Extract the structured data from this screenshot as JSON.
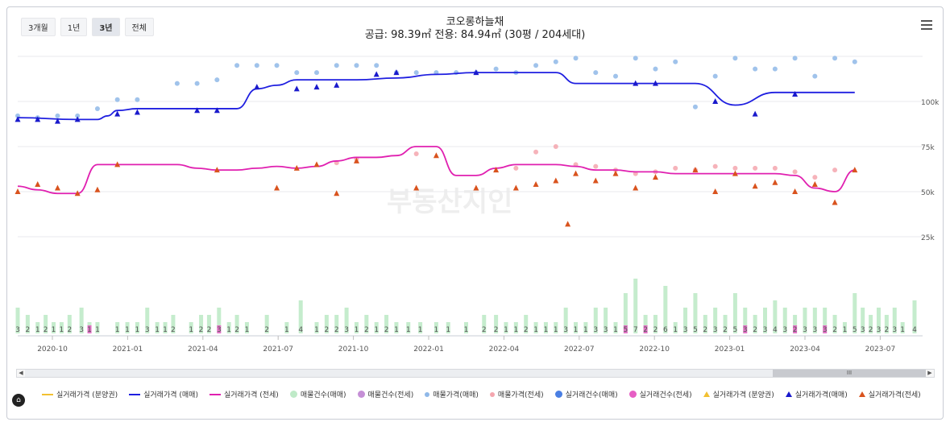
{
  "periods": [
    {
      "label": "3개월"
    },
    {
      "label": "1년"
    },
    {
      "label": "3년",
      "active": true
    },
    {
      "label": "전체"
    }
  ],
  "title_line1": "코오롱하늘채",
  "title_line2": "공급: 98.39㎡ 전용: 84.94㎡ (30평 / 204세대)",
  "watermark": "부동산지인",
  "logo_text": "⌂",
  "chart_data": {
    "type": "line",
    "x_ticks": [
      "2020-10",
      "2021-01",
      "2021-04",
      "2021-07",
      "2021-10",
      "2022-01",
      "2022-04",
      "2022-07",
      "2022-10",
      "2023-01",
      "2023-04",
      "2023-07"
    ],
    "y_ticks": [
      "100k",
      "75k",
      "50k",
      "25k"
    ],
    "y_tick_values": [
      100000,
      75000,
      50000,
      25000
    ],
    "ylim": [
      0,
      125000
    ],
    "legend_position": "bottom",
    "grid": true,
    "colors": {
      "sale": "#1f1fe0",
      "jeonse": "#e020b0",
      "sale_dot": "#8fb8e8",
      "jeonse_dot": "#f4a6ae",
      "tri_sale": "#1a1acc",
      "tri_jeonse": "#d9531e",
      "vol_sale": "#bfeac8",
      "vol_jeonse": "#e7a0d9",
      "deal_sale": "#5b8fe0",
      "deal_jeonse": "#e65ec4"
    },
    "series": [
      {
        "name": "실거래가격 (매매)",
        "key": "sale_line",
        "x": [
          0,
          3,
          4,
          4.5,
          5,
          6,
          6.5,
          7,
          8,
          11,
          12,
          13,
          14,
          15,
          16,
          17,
          19,
          21,
          23,
          24,
          25,
          26,
          27,
          28,
          30,
          32,
          33,
          34,
          36,
          38,
          39,
          40,
          42
        ],
        "values": [
          91000,
          90000,
          90000,
          92000,
          95000,
          96000,
          96000,
          96000,
          96000,
          96000,
          107000,
          109000,
          112000,
          112000,
          112000,
          112000,
          113000,
          115000,
          116000,
          116000,
          116000,
          116000,
          116000,
          110000,
          110000,
          110000,
          110000,
          110000,
          98000,
          105000,
          105000,
          105000,
          105000
        ]
      },
      {
        "name": "실거래가격 (전세)",
        "key": "jeonse_line",
        "x": [
          0,
          1,
          2,
          3,
          4,
          5,
          6,
          7,
          8,
          9,
          10,
          11,
          12,
          13,
          14,
          15,
          16,
          17,
          18,
          19,
          20,
          21,
          22,
          23,
          24,
          25,
          26,
          27,
          28,
          29,
          30,
          31,
          32,
          33,
          34,
          35,
          36,
          37,
          38,
          39,
          40,
          41,
          42
        ],
        "values": [
          53000,
          51000,
          49000,
          49000,
          65000,
          65000,
          65000,
          65000,
          65000,
          63000,
          62000,
          62000,
          63000,
          64000,
          63000,
          64000,
          67000,
          69000,
          69000,
          70000,
          75000,
          75000,
          59000,
          59000,
          63000,
          65000,
          65000,
          65000,
          64000,
          62000,
          62000,
          61000,
          61000,
          60000,
          60000,
          60000,
          60000,
          60000,
          60000,
          59000,
          52000,
          50000,
          62000
        ]
      }
    ],
    "sale_listings": [
      [
        0,
        92000
      ],
      [
        1,
        91000
      ],
      [
        2,
        92000
      ],
      [
        3,
        92000
      ],
      [
        4,
        96000
      ],
      [
        5,
        101000
      ],
      [
        6,
        101000
      ],
      [
        8,
        110000
      ],
      [
        9,
        110000
      ],
      [
        10,
        112000
      ],
      [
        11,
        120000
      ],
      [
        12,
        120000
      ],
      [
        13,
        120000
      ],
      [
        14,
        116000
      ],
      [
        15,
        116000
      ],
      [
        16,
        120000
      ],
      [
        17,
        120000
      ],
      [
        18,
        120000
      ],
      [
        19,
        116000
      ],
      [
        20,
        116000
      ],
      [
        21,
        116000
      ],
      [
        22,
        116000
      ],
      [
        23,
        116000
      ],
      [
        24,
        118000
      ],
      [
        25,
        116000
      ],
      [
        26,
        120000
      ],
      [
        27,
        122000
      ],
      [
        28,
        124000
      ],
      [
        29,
        116000
      ],
      [
        30,
        114000
      ],
      [
        31,
        124000
      ],
      [
        32,
        118000
      ],
      [
        33,
        122000
      ],
      [
        34,
        97000
      ],
      [
        35,
        114000
      ],
      [
        36,
        124000
      ],
      [
        37,
        118000
      ],
      [
        38,
        118000
      ],
      [
        39,
        124000
      ],
      [
        40,
        114000
      ],
      [
        41,
        124000
      ],
      [
        42,
        122000
      ]
    ],
    "jeonse_listings": [
      [
        16,
        66000
      ],
      [
        17,
        68000
      ],
      [
        20,
        71000
      ],
      [
        25,
        63000
      ],
      [
        26,
        72000
      ],
      [
        27,
        75000
      ],
      [
        28,
        65000
      ],
      [
        29,
        64000
      ],
      [
        30,
        62000
      ],
      [
        31,
        60000
      ],
      [
        32,
        61000
      ],
      [
        33,
        63000
      ],
      [
        34,
        62000
      ],
      [
        35,
        64000
      ],
      [
        36,
        63000
      ],
      [
        37,
        63000
      ],
      [
        38,
        63000
      ],
      [
        39,
        61000
      ],
      [
        40,
        58000
      ],
      [
        41,
        62000
      ]
    ],
    "sale_trades": [
      [
        0,
        90000
      ],
      [
        1,
        90000
      ],
      [
        2,
        89000
      ],
      [
        3,
        90000
      ],
      [
        5,
        93000
      ],
      [
        6,
        94000
      ],
      [
        9,
        95000
      ],
      [
        10,
        95000
      ],
      [
        12,
        108000
      ],
      [
        14,
        107000
      ],
      [
        15,
        108000
      ],
      [
        16,
        109000
      ],
      [
        18,
        115000
      ],
      [
        19,
        116000
      ],
      [
        23,
        116000
      ],
      [
        31,
        110000
      ],
      [
        32,
        110000
      ],
      [
        35,
        100000
      ],
      [
        37,
        93000
      ],
      [
        39,
        104000
      ]
    ],
    "jeonse_trades": [
      [
        0,
        50000
      ],
      [
        1,
        54000
      ],
      [
        2,
        52000
      ],
      [
        3,
        49000
      ],
      [
        4,
        51000
      ],
      [
        5,
        65000
      ],
      [
        10,
        62000
      ],
      [
        13,
        52000
      ],
      [
        14,
        63000
      ],
      [
        15,
        65000
      ],
      [
        16,
        49000
      ],
      [
        17,
        67000
      ],
      [
        20,
        52000
      ],
      [
        21,
        70000
      ],
      [
        23,
        52000
      ],
      [
        24,
        62000
      ],
      [
        25,
        52000
      ],
      [
        26,
        54000
      ],
      [
        27,
        56000
      ],
      [
        28,
        60000
      ],
      [
        29,
        56000
      ],
      [
        30,
        60000
      ],
      [
        31,
        52000
      ],
      [
        32,
        58000
      ],
      [
        34,
        62000
      ],
      [
        35,
        50000
      ],
      [
        36,
        60000
      ],
      [
        37,
        53000
      ],
      [
        38,
        55000
      ],
      [
        39,
        50000
      ],
      [
        40,
        54000
      ],
      [
        41,
        44000
      ],
      [
        42,
        62000
      ]
    ],
    "volumes": [
      {
        "x": 0,
        "label": "3",
        "sale": 3,
        "jeonse": 0
      },
      {
        "x": 0.5,
        "label": "2",
        "sale": 2,
        "jeonse": 0
      },
      {
        "x": 1,
        "label": "1",
        "sale": 1,
        "jeonse": 0
      },
      {
        "x": 1.4,
        "label": "2",
        "sale": 2,
        "jeonse": 0
      },
      {
        "x": 1.8,
        "label": "1",
        "sale": 1,
        "jeonse": 0
      },
      {
        "x": 2.2,
        "label": "1",
        "sale": 1,
        "jeonse": 0
      },
      {
        "x": 2.6,
        "label": "2",
        "sale": 2,
        "jeonse": 0
      },
      {
        "x": 3.2,
        "label": "3",
        "sale": 3,
        "jeonse": 0
      },
      {
        "x": 3.6,
        "label": "1",
        "sale": 1,
        "jeonse": 1
      },
      {
        "x": 4,
        "label": "1",
        "sale": 1,
        "jeonse": 0
      },
      {
        "x": 5,
        "label": "1",
        "sale": 1,
        "jeonse": 0
      },
      {
        "x": 5.5,
        "label": "1",
        "sale": 1,
        "jeonse": 0
      },
      {
        "x": 6,
        "label": "1",
        "sale": 1,
        "jeonse": 0
      },
      {
        "x": 6.5,
        "label": "3",
        "sale": 3,
        "jeonse": 0
      },
      {
        "x": 7,
        "label": "1",
        "sale": 1,
        "jeonse": 0
      },
      {
        "x": 7.4,
        "label": "1",
        "sale": 1,
        "jeonse": 0
      },
      {
        "x": 7.8,
        "label": "2",
        "sale": 2,
        "jeonse": 0
      },
      {
        "x": 8.7,
        "label": "1",
        "sale": 1,
        "jeonse": 0
      },
      {
        "x": 9.2,
        "label": "2",
        "sale": 2,
        "jeonse": 0
      },
      {
        "x": 9.6,
        "label": "2",
        "sale": 2,
        "jeonse": 0
      },
      {
        "x": 10.1,
        "label": "3",
        "sale": 3,
        "jeonse": 1
      },
      {
        "x": 10.6,
        "label": "1",
        "sale": 1,
        "jeonse": 0
      },
      {
        "x": 11,
        "label": "2",
        "sale": 2,
        "jeonse": 0
      },
      {
        "x": 11.5,
        "label": "1",
        "sale": 1,
        "jeonse": 0
      },
      {
        "x": 12.5,
        "label": "2",
        "sale": 2,
        "jeonse": 0
      },
      {
        "x": 13.5,
        "label": "1",
        "sale": 1,
        "jeonse": 0
      },
      {
        "x": 14.2,
        "label": "4",
        "sale": 4,
        "jeonse": 0
      },
      {
        "x": 15,
        "label": "1",
        "sale": 1,
        "jeonse": 0
      },
      {
        "x": 15.5,
        "label": "2",
        "sale": 2,
        "jeonse": 0
      },
      {
        "x": 16,
        "label": "2",
        "sale": 2,
        "jeonse": 0
      },
      {
        "x": 16.5,
        "label": "3",
        "sale": 3,
        "jeonse": 0
      },
      {
        "x": 17,
        "label": "1",
        "sale": 1,
        "jeonse": 0
      },
      {
        "x": 17.5,
        "label": "2",
        "sale": 2,
        "jeonse": 0
      },
      {
        "x": 18,
        "label": "1",
        "sale": 1,
        "jeonse": 0
      },
      {
        "x": 18.5,
        "label": "2",
        "sale": 2,
        "jeonse": 0
      },
      {
        "x": 19,
        "label": "1",
        "sale": 1,
        "jeonse": 0
      },
      {
        "x": 19.6,
        "label": "1",
        "sale": 1,
        "jeonse": 0
      },
      {
        "x": 20.2,
        "label": "1",
        "sale": 1,
        "jeonse": 0
      },
      {
        "x": 21,
        "label": "1",
        "sale": 1,
        "jeonse": 0
      },
      {
        "x": 21.6,
        "label": "1",
        "sale": 1,
        "jeonse": 0
      },
      {
        "x": 22.5,
        "label": "1",
        "sale": 1,
        "jeonse": 0
      },
      {
        "x": 23.4,
        "label": "2",
        "sale": 2,
        "jeonse": 0
      },
      {
        "x": 24,
        "label": "2",
        "sale": 2,
        "jeonse": 0
      },
      {
        "x": 24.5,
        "label": "1",
        "sale": 1,
        "jeonse": 0
      },
      {
        "x": 25,
        "label": "1",
        "sale": 1,
        "jeonse": 0
      },
      {
        "x": 25.5,
        "label": "2",
        "sale": 2,
        "jeonse": 0
      },
      {
        "x": 26,
        "label": "1",
        "sale": 1,
        "jeonse": 0
      },
      {
        "x": 26.5,
        "label": "1",
        "sale": 1,
        "jeonse": 0
      },
      {
        "x": 27,
        "label": "1",
        "sale": 1,
        "jeonse": 0
      },
      {
        "x": 27.5,
        "label": "3",
        "sale": 3,
        "jeonse": 0
      },
      {
        "x": 28,
        "label": "1",
        "sale": 1,
        "jeonse": 0
      },
      {
        "x": 28.5,
        "label": "1",
        "sale": 1,
        "jeonse": 0
      },
      {
        "x": 29,
        "label": "3",
        "sale": 3,
        "jeonse": 0
      },
      {
        "x": 29.5,
        "label": "3",
        "sale": 3,
        "jeonse": 0
      },
      {
        "x": 30,
        "label": "1",
        "sale": 1,
        "jeonse": 0
      },
      {
        "x": 30.5,
        "label": "5",
        "sale": 5,
        "jeonse": 1
      },
      {
        "x": 31,
        "label": "7",
        "sale": 7,
        "jeonse": 0
      },
      {
        "x": 31.5,
        "label": "2",
        "sale": 2,
        "jeonse": 1
      },
      {
        "x": 32,
        "label": "2",
        "sale": 2,
        "jeonse": 0
      },
      {
        "x": 32.5,
        "label": "6",
        "sale": 6,
        "jeonse": 0
      },
      {
        "x": 33,
        "label": "1",
        "sale": 1,
        "jeonse": 0
      },
      {
        "x": 33.5,
        "label": "3",
        "sale": 3,
        "jeonse": 0
      },
      {
        "x": 34,
        "label": "5",
        "sale": 5,
        "jeonse": 0
      },
      {
        "x": 34.5,
        "label": "2",
        "sale": 2,
        "jeonse": 0
      },
      {
        "x": 35,
        "label": "3",
        "sale": 3,
        "jeonse": 0
      },
      {
        "x": 35.5,
        "label": "2",
        "sale": 2,
        "jeonse": 0
      },
      {
        "x": 36,
        "label": "5",
        "sale": 5,
        "jeonse": 0
      },
      {
        "x": 36.5,
        "label": "3",
        "sale": 3,
        "jeonse": 1
      },
      {
        "x": 37,
        "label": "2",
        "sale": 2,
        "jeonse": 0
      },
      {
        "x": 37.5,
        "label": "3",
        "sale": 3,
        "jeonse": 0
      },
      {
        "x": 38,
        "label": "4",
        "sale": 4,
        "jeonse": 0
      },
      {
        "x": 38.5,
        "label": "3",
        "sale": 3,
        "jeonse": 0
      },
      {
        "x": 39,
        "label": "2",
        "sale": 2,
        "jeonse": 1
      },
      {
        "x": 39.5,
        "label": "3",
        "sale": 3,
        "jeonse": 0
      },
      {
        "x": 40,
        "label": "3",
        "sale": 3,
        "jeonse": 0
      },
      {
        "x": 40.5,
        "label": "3",
        "sale": 3,
        "jeonse": 1
      },
      {
        "x": 41,
        "label": "2",
        "sale": 2,
        "jeonse": 0
      },
      {
        "x": 41.5,
        "label": "1",
        "sale": 1,
        "jeonse": 0
      },
      {
        "x": 42,
        "label": "5",
        "sale": 5,
        "jeonse": 0
      },
      {
        "x": 42.4,
        "label": "3",
        "sale": 3,
        "jeonse": 0
      },
      {
        "x": 42.8,
        "label": "2",
        "sale": 2,
        "jeonse": 0
      },
      {
        "x": 43.2,
        "label": "3",
        "sale": 3,
        "jeonse": 0
      },
      {
        "x": 43.6,
        "label": "2",
        "sale": 2,
        "jeonse": 0
      },
      {
        "x": 44,
        "label": "3",
        "sale": 3,
        "jeonse": 0
      },
      {
        "x": 44.4,
        "label": "1",
        "sale": 1,
        "jeonse": 0
      },
      {
        "x": 45,
        "label": "4",
        "sale": 4,
        "jeonse": 0
      }
    ],
    "outlier_jeonse": {
      "x": 27.6,
      "y": 32000
    }
  },
  "legend": [
    {
      "label": "실거래가격 (분양권)",
      "shape": "line",
      "color": "#f2c031"
    },
    {
      "label": "실거래가격 (매매)",
      "shape": "line",
      "color": "#1f1fe0"
    },
    {
      "label": "실거래가격 (전세)",
      "shape": "line",
      "color": "#e020b0"
    },
    {
      "label": "매물건수(매매)",
      "shape": "dot",
      "color": "#bfeac8"
    },
    {
      "label": "매물건수(전세)",
      "shape": "dot",
      "color": "#c58fd6"
    },
    {
      "label": "매물가격(매매)",
      "shape": "smalldot",
      "color": "#8fb8e8"
    },
    {
      "label": "매물가격(전세)",
      "shape": "smalldot",
      "color": "#f4a6ae"
    },
    {
      "label": "실거래건수(매매)",
      "shape": "dot",
      "color": "#4a7fe3"
    },
    {
      "label": "실거래건수(전세)",
      "shape": "dot",
      "color": "#e65ec4"
    },
    {
      "label": "실거래가격 (분양권)",
      "shape": "tri",
      "color": "#f2c031"
    },
    {
      "label": "실거래가격(매매)",
      "shape": "tri",
      "color": "#1a1acc"
    },
    {
      "label": "실거래가격(전세)",
      "shape": "tri",
      "color": "#d9531e"
    }
  ],
  "scrollbar": {
    "grip": "III",
    "left_arrow": "◀",
    "right_arrow": "▶"
  }
}
